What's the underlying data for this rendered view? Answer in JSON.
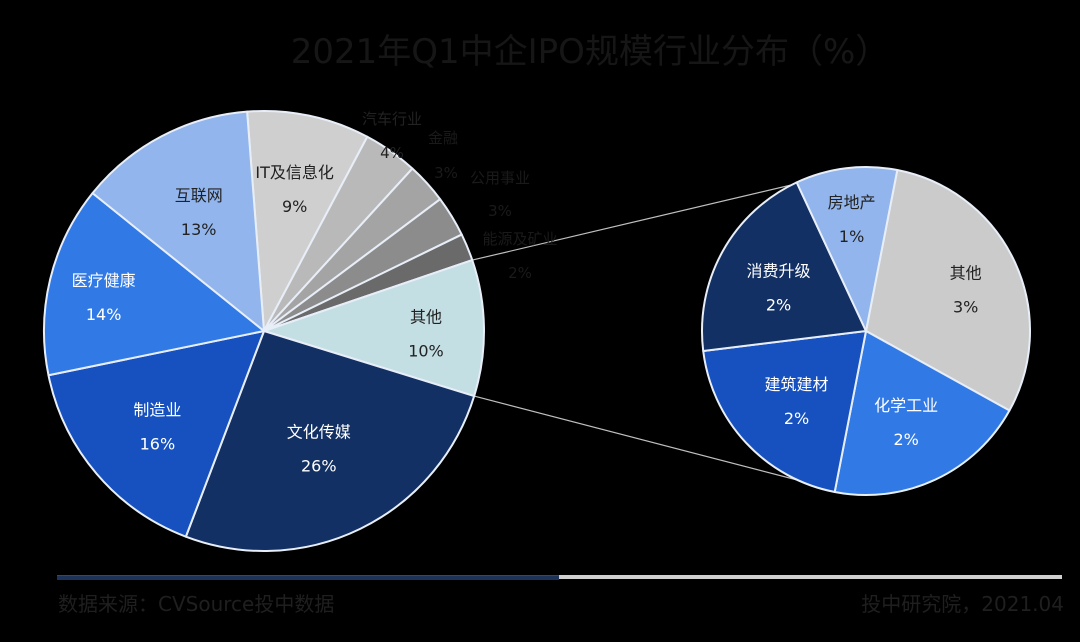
{
  "title": "2021年Q1中企IPO规模行业分布（%）",
  "footer": {
    "source": "数据来源：CVSource投中数据",
    "publisher": "投中研究院，2021.04"
  },
  "colors": {
    "background": "#000000",
    "slice_border": "#e8eef8",
    "connector": "#bfbfbf",
    "dark_label": "#222222",
    "light_label": "#ffffff",
    "outside_label": "#1a1a1a"
  },
  "chart_data": {
    "type": "pie",
    "title": "2021年Q1中企IPO规模行业分布（%）",
    "main_pie": {
      "start_angle_deg": -4.4,
      "direction": "clockwise",
      "slices": [
        {
          "label": "IT及信息化",
          "value": 9,
          "display": "9%",
          "color": "#cfcfcf",
          "label_color": "#222222",
          "label_pos": "inside"
        },
        {
          "label": "汽车行业",
          "value": 4,
          "display": "4%",
          "color": "#b9b9b9",
          "label_color": "#222222",
          "label_pos": "outside"
        },
        {
          "label": "金融",
          "value": 3,
          "display": "3%",
          "color": "#a4a4a4",
          "label_color": "#1a1a1a",
          "label_pos": "outside"
        },
        {
          "label": "公用事业",
          "value": 3,
          "display": "3%",
          "color": "#8c8c8c",
          "label_color": "#1a1a1a",
          "label_pos": "outside"
        },
        {
          "label": "能源及矿业",
          "value": 2,
          "display": "2%",
          "color": "#6a6a6a",
          "label_color": "#1a1a1a",
          "label_pos": "outside"
        },
        {
          "label": "其他",
          "value": 10,
          "display": "10%",
          "color": "#c3dfe4",
          "label_color": "#222222",
          "label_pos": "inside"
        },
        {
          "label": "文化传媒",
          "value": 26,
          "display": "26%",
          "color": "#123063",
          "label_color": "#ffffff",
          "label_pos": "inside"
        },
        {
          "label": "制造业",
          "value": 16,
          "display": "16%",
          "color": "#1651bf",
          "label_color": "#ffffff",
          "label_pos": "inside"
        },
        {
          "label": "医疗健康",
          "value": 14,
          "display": "14%",
          "color": "#317ae6",
          "label_color": "#ffffff",
          "label_pos": "inside"
        },
        {
          "label": "互联网",
          "value": 13,
          "display": "13%",
          "color": "#91b5ec",
          "label_color": "#222222",
          "label_pos": "inside"
        }
      ]
    },
    "detail_pie": {
      "breaks_out": "其他",
      "start_angle_deg": 11,
      "direction": "clockwise",
      "slices": [
        {
          "label": "其他",
          "value": 3,
          "display": "3%",
          "color": "#cbcbcb",
          "label_color": "#222222"
        },
        {
          "label": "化学工业",
          "value": 2,
          "display": "2%",
          "color": "#317ae6",
          "label_color": "#ffffff"
        },
        {
          "label": "建筑建材",
          "value": 2,
          "display": "2%",
          "color": "#1651bf",
          "label_color": "#ffffff"
        },
        {
          "label": "消费升级",
          "value": 2,
          "display": "2%",
          "color": "#123063",
          "label_color": "#ffffff"
        },
        {
          "label": "房地产",
          "value": 1,
          "display": "1%",
          "color": "#91b5ec",
          "label_color": "#222222"
        }
      ]
    },
    "legend": "none"
  }
}
